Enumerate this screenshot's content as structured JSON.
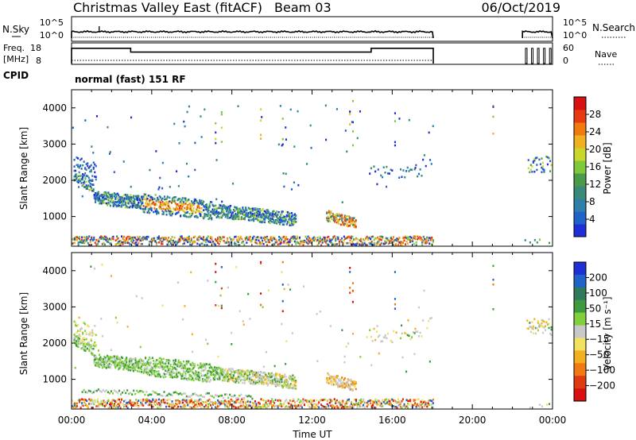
{
  "header": {
    "station": "Christmas Valley East (fitACF)",
    "beam": "Beam 03",
    "date": "06/Oct/2019"
  },
  "colors": {
    "power_scale": [
      "#1f2fd6",
      "#1f63c8",
      "#2f80a8",
      "#3a8a7a",
      "#4a9a4a",
      "#7ec83a",
      "#c8d82a",
      "#f0b020",
      "#f07a10",
      "#e83a10",
      "#d81010"
    ],
    "velocity_scale": [
      "#1f2fd6",
      "#1f63c8",
      "#2f7a5a",
      "#3f9a3f",
      "#7fd03a",
      "#c8c8c8",
      "#f2e060",
      "#f0b020",
      "#f07a10",
      "#e03a10",
      "#d81010"
    ],
    "grid": "#000000"
  },
  "chart_data": [
    {
      "type": "line",
      "panel": "noise",
      "left_label_1": "N.Sky",
      "left_ticks": [
        "10^5",
        "10^0"
      ],
      "right_label": "N.Search",
      "right_ticks": [
        "10^5",
        "10^0"
      ],
      "x_range_hours": [
        0,
        24
      ],
      "data_segments_hours": [
        [
          0,
          18.05
        ],
        [
          22.5,
          24
        ]
      ]
    },
    {
      "type": "line",
      "panel": "frequency",
      "left_label_1": "Freq.",
      "left_label_2": "[MHz]",
      "left_ticks": [
        "18",
        "8"
      ],
      "right_label": "Nave",
      "right_ticks": [
        "60",
        "0"
      ],
      "ylim_left": [
        8,
        18
      ],
      "ylim_right": [
        0,
        60
      ],
      "freq_steps": [
        {
          "start": 0,
          "end": 2.95,
          "mhz": 16
        },
        {
          "start": 2.95,
          "end": 14.95,
          "mhz": 14
        },
        {
          "start": 14.95,
          "end": 18.05,
          "mhz": 16
        }
      ],
      "nave_level": 10
    },
    {
      "type": "text",
      "panel": "cpid",
      "label": "CPID",
      "value": "normal (fast) 151 RF"
    },
    {
      "type": "heatmap",
      "panel": "power",
      "xlabel": "",
      "ylabel": "Slant Range [km]",
      "x_range_hours": [
        0,
        24
      ],
      "ylim_km": [
        180,
        4500
      ],
      "y_ticks": [
        1000,
        2000,
        3000,
        4000
      ],
      "colorbar_label": "Power [dB]",
      "colorbar_ticks": [
        4,
        8,
        12,
        16,
        20,
        24,
        28
      ],
      "colorbar_range": [
        0,
        32
      ]
    },
    {
      "type": "heatmap",
      "panel": "velocity",
      "xlabel": "Time UT",
      "ylabel": "Slant Range [km]",
      "x_range_hours": [
        0,
        24
      ],
      "x_ticks": [
        "00:00",
        "04:00",
        "08:00",
        "12:00",
        "16:00",
        "20:00",
        "00:00"
      ],
      "ylim_km": [
        180,
        4500
      ],
      "y_ticks": [
        1000,
        2000,
        3000,
        4000
      ],
      "colorbar_label": "Velocity [m s⁻¹]",
      "colorbar_ticks": [
        "200",
        "100",
        "50",
        "15",
        "−15",
        "−50",
        "−100",
        "−200"
      ]
    }
  ]
}
